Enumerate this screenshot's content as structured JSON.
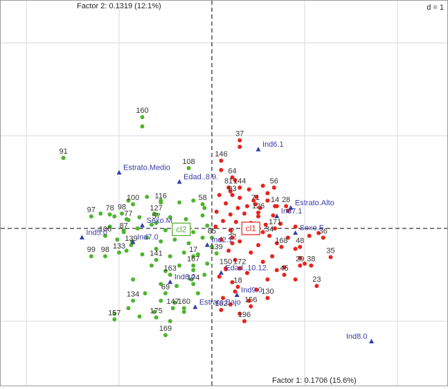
{
  "chart_data": {
    "type": "scatter",
    "xlabel": "Factor 1: 0.1706 (15.6%)",
    "ylabel": "Factor 2: 0.1319 (12.1%)",
    "scale_label": "d = 1",
    "xlim": [
      -2.3,
      2.5
    ],
    "ylim": [
      -1.75,
      2.45
    ],
    "grid": true,
    "colors": {
      "cl1": "#e8231d",
      "cl2": "#4fb52f",
      "variables": "#2e3ea8",
      "cl1_box": "#e0302a",
      "cl2_box": "#5cae3a"
    },
    "clusters": [
      {
        "name": "cl1",
        "x": 0.42,
        "y": 0.0
      },
      {
        "name": "cl2",
        "x": -0.33,
        "y": -0.01
      }
    ],
    "variables": [
      {
        "label": "Ind6.1",
        "x": 0.5,
        "y": 0.85
      },
      {
        "label": "Estrato.Medio",
        "x": -1.0,
        "y": 0.6
      },
      {
        "label": "Edad..8.9.",
        "x": -0.35,
        "y": 0.5
      },
      {
        "label": "Estrato.Alto",
        "x": 0.85,
        "y": 0.22
      },
      {
        "label": "Ind7.1",
        "x": 0.7,
        "y": 0.13
      },
      {
        "label": "Sexo.F",
        "x": 0.9,
        "y": -0.05
      },
      {
        "label": "Sexo.M",
        "x": -0.75,
        "y": 0.03
      },
      {
        "label": "Ind5.0",
        "x": -1.4,
        "y": -0.1
      },
      {
        "label": "Ind7.0",
        "x": -0.85,
        "y": -0.15
      },
      {
        "label": "Ind2.1",
        "x": -0.05,
        "y": -0.18
      },
      {
        "label": "Edad..10.12.",
        "x": 0.1,
        "y": -0.48
      },
      {
        "label": "Ind6.0",
        "x": -0.45,
        "y": -0.58
      },
      {
        "label": "Ind9.0",
        "x": 0.27,
        "y": -0.72
      },
      {
        "label": "Estrato.Bajo",
        "x": -0.18,
        "y": -0.85
      },
      {
        "label": "Ind8.0",
        "x": 1.72,
        "y": -1.22
      }
    ],
    "point_labels": [
      {
        "label": "37",
        "x": 0.3,
        "y": 0.95,
        "group": "cl1"
      },
      {
        "label": "146",
        "x": 0.1,
        "y": 0.73,
        "group": "cl1"
      },
      {
        "label": "64",
        "x": 0.22,
        "y": 0.55,
        "group": "cl1"
      },
      {
        "label": "81",
        "x": 0.18,
        "y": 0.44,
        "group": "cl1"
      },
      {
        "label": "144",
        "x": 0.3,
        "y": 0.44,
        "group": "cl1"
      },
      {
        "label": "56",
        "x": 0.67,
        "y": 0.44,
        "group": "cl1"
      },
      {
        "label": "93",
        "x": 0.22,
        "y": 0.36,
        "group": "cl1"
      },
      {
        "label": "71",
        "x": 0.47,
        "y": 0.26,
        "group": "cl1"
      },
      {
        "label": "14",
        "x": 0.68,
        "y": 0.24,
        "group": "cl1"
      },
      {
        "label": "28",
        "x": 0.8,
        "y": 0.24,
        "group": "cl1"
      },
      {
        "label": "126",
        "x": 0.5,
        "y": 0.17,
        "group": "cl1"
      },
      {
        "label": "171",
        "x": 0.68,
        "y": 0.0,
        "group": "cl1"
      },
      {
        "label": "34",
        "x": 0.62,
        "y": -0.08,
        "group": "cl1"
      },
      {
        "label": "36",
        "x": 1.2,
        "y": -0.1,
        "group": "cl1"
      },
      {
        "label": "48",
        "x": 0.95,
        "y": -0.2,
        "group": "cl1"
      },
      {
        "label": "168",
        "x": 0.75,
        "y": -0.2,
        "group": "cl1"
      },
      {
        "label": "35",
        "x": 1.28,
        "y": -0.31,
        "group": "cl1"
      },
      {
        "label": "22",
        "x": 0.22,
        "y": -0.16,
        "group": "cl1"
      },
      {
        "label": "2",
        "x": 0.22,
        "y": -0.1,
        "group": "cl1"
      },
      {
        "label": "29",
        "x": 0.95,
        "y": -0.4,
        "group": "cl1"
      },
      {
        "label": "38",
        "x": 1.07,
        "y": -0.4,
        "group": "cl1"
      },
      {
        "label": "45",
        "x": 0.78,
        "y": -0.5,
        "group": "cl1"
      },
      {
        "label": "23",
        "x": 1.13,
        "y": -0.62,
        "group": "cl1"
      },
      {
        "label": "130",
        "x": 0.6,
        "y": -0.75,
        "group": "cl1"
      },
      {
        "label": "18",
        "x": 0.28,
        "y": -0.63,
        "group": "cl1"
      },
      {
        "label": "156",
        "x": 0.42,
        "y": -0.84,
        "group": "cl1"
      },
      {
        "label": "196",
        "x": 0.35,
        "y": -1.0,
        "group": "cl1"
      },
      {
        "label": "162",
        "x": 0.1,
        "y": -0.88,
        "group": "cl1"
      },
      {
        "label": "150",
        "x": 0.15,
        "y": -0.43,
        "group": "cl1"
      },
      {
        "label": "172",
        "x": 0.3,
        "y": -0.43,
        "group": "cl1"
      },
      {
        "label": "91",
        "x": -1.6,
        "y": 0.76,
        "group": "cl2"
      },
      {
        "label": "160",
        "x": -0.75,
        "y": 1.2,
        "group": "cl2"
      },
      {
        "label": "108",
        "x": -0.25,
        "y": 0.65,
        "group": "cl2"
      },
      {
        "label": "100",
        "x": -0.85,
        "y": 0.26,
        "group": "cl2"
      },
      {
        "label": "116",
        "x": -0.55,
        "y": 0.28,
        "group": "cl2"
      },
      {
        "label": "58",
        "x": -0.1,
        "y": 0.26,
        "group": "cl2"
      },
      {
        "label": "97",
        "x": -1.3,
        "y": 0.13,
        "group": "cl2"
      },
      {
        "label": "78",
        "x": -1.1,
        "y": 0.15,
        "group": "cl2"
      },
      {
        "label": "98",
        "x": -0.97,
        "y": 0.16,
        "group": "cl2"
      },
      {
        "label": "77",
        "x": -0.9,
        "y": 0.09,
        "group": "cl2"
      },
      {
        "label": "127",
        "x": -0.6,
        "y": 0.15,
        "group": "cl2"
      },
      {
        "label": "106",
        "x": -1.15,
        "y": -0.08,
        "group": "cl2"
      },
      {
        "label": "87",
        "x": -0.95,
        "y": -0.04,
        "group": "cl2"
      },
      {
        "label": "57",
        "x": -0.6,
        "y": 0.06,
        "group": "cl2"
      },
      {
        "label": "133",
        "x": -1.0,
        "y": -0.26,
        "group": "cl2"
      },
      {
        "label": "139",
        "x": -0.87,
        "y": -0.18,
        "group": "cl2"
      },
      {
        "label": "99",
        "x": -1.3,
        "y": -0.3,
        "group": "cl2"
      },
      {
        "label": "98",
        "x": -1.15,
        "y": -0.3,
        "group": "cl2"
      },
      {
        "label": "141",
        "x": -0.6,
        "y": -0.34,
        "group": "cl2"
      },
      {
        "label": "65",
        "x": 0.0,
        "y": -0.1,
        "group": "cl2"
      },
      {
        "label": "17",
        "x": -0.2,
        "y": -0.3,
        "group": "cl2"
      },
      {
        "label": "139",
        "x": 0.05,
        "y": -0.27,
        "group": "cl2"
      },
      {
        "label": "163",
        "x": -0.45,
        "y": -0.5,
        "group": "cl2"
      },
      {
        "label": "167",
        "x": -0.2,
        "y": -0.4,
        "group": "cl2"
      },
      {
        "label": "174",
        "x": -0.2,
        "y": -0.6,
        "group": "cl2"
      },
      {
        "label": "69",
        "x": -0.5,
        "y": -0.7,
        "group": "cl2"
      },
      {
        "label": "134",
        "x": -0.85,
        "y": -0.78,
        "group": "cl2"
      },
      {
        "label": "147",
        "x": -0.42,
        "y": -0.86,
        "group": "cl2"
      },
      {
        "label": "160",
        "x": -0.3,
        "y": -0.86,
        "group": "cl2"
      },
      {
        "label": "157",
        "x": -1.05,
        "y": -0.98,
        "group": "cl2"
      },
      {
        "label": "175",
        "x": -0.6,
        "y": -0.96,
        "group": "cl2"
      },
      {
        "label": "169",
        "x": -0.5,
        "y": -1.15,
        "group": "cl2"
      }
    ],
    "cl1_points": [
      [
        0.3,
        0.88
      ],
      [
        0.1,
        0.63
      ],
      [
        0.25,
        0.52
      ],
      [
        0.55,
        0.46
      ],
      [
        0.2,
        0.4
      ],
      [
        0.4,
        0.42
      ],
      [
        0.08,
        0.36
      ],
      [
        0.3,
        0.33
      ],
      [
        0.48,
        0.34
      ],
      [
        0.6,
        0.3
      ],
      [
        0.15,
        0.27
      ],
      [
        0.28,
        0.22
      ],
      [
        0.38,
        0.24
      ],
      [
        0.52,
        0.22
      ],
      [
        0.7,
        0.24
      ],
      [
        0.82,
        0.19
      ],
      [
        0.05,
        0.18
      ],
      [
        0.2,
        0.15
      ],
      [
        0.35,
        0.16
      ],
      [
        0.5,
        0.13
      ],
      [
        0.66,
        0.14
      ],
      [
        0.12,
        0.08
      ],
      [
        0.26,
        0.07
      ],
      [
        0.42,
        0.06
      ],
      [
        0.58,
        0.04
      ],
      [
        0.74,
        0.05
      ],
      [
        0.9,
        0.02
      ],
      [
        0.04,
        0.02
      ],
      [
        0.2,
        -0.02
      ],
      [
        0.36,
        -0.05
      ],
      [
        0.55,
        -0.04
      ],
      [
        0.82,
        -0.1
      ],
      [
        1.05,
        -0.08
      ],
      [
        1.15,
        -0.05
      ],
      [
        0.1,
        -0.12
      ],
      [
        0.3,
        -0.14
      ],
      [
        0.5,
        -0.18
      ],
      [
        0.7,
        -0.16
      ],
      [
        0.9,
        -0.22
      ],
      [
        0.18,
        -0.24
      ],
      [
        0.42,
        -0.26
      ],
      [
        0.65,
        -0.3
      ],
      [
        0.25,
        -0.34
      ],
      [
        0.55,
        -0.36
      ],
      [
        0.78,
        -0.42
      ],
      [
        1.0,
        -0.38
      ],
      [
        0.15,
        -0.44
      ],
      [
        0.38,
        -0.48
      ],
      [
        0.6,
        -0.55
      ],
      [
        0.9,
        -0.55
      ],
      [
        0.22,
        -0.58
      ],
      [
        0.08,
        -0.52
      ],
      [
        0.48,
        -0.66
      ],
      [
        0.25,
        -0.68
      ],
      [
        0.4,
        -0.78
      ],
      [
        0.2,
        -0.82
      ],
      [
        0.3,
        -0.92
      ],
      [
        0.12,
        -0.75
      ],
      [
        0.7,
        -0.45
      ],
      [
        0.95,
        -0.32
      ],
      [
        0.6,
        0.38
      ],
      [
        0.45,
        0.3
      ]
    ],
    "cl2_points": [
      [
        -1.6,
        0.76
      ],
      [
        -0.75,
        1.1
      ],
      [
        -0.9,
        0.3
      ],
      [
        -0.7,
        0.34
      ],
      [
        -0.55,
        0.3
      ],
      [
        -0.35,
        0.28
      ],
      [
        -0.2,
        0.3
      ],
      [
        -0.08,
        0.22
      ],
      [
        -1.2,
        0.16
      ],
      [
        -1.05,
        0.13
      ],
      [
        -0.92,
        0.1
      ],
      [
        -0.78,
        0.12
      ],
      [
        -0.62,
        0.16
      ],
      [
        -0.45,
        0.12
      ],
      [
        -0.28,
        0.1
      ],
      [
        -0.1,
        0.14
      ],
      [
        -1.1,
        0.02
      ],
      [
        -0.95,
        -0.02
      ],
      [
        -0.8,
        0.0
      ],
      [
        -0.65,
        0.04
      ],
      [
        -0.5,
        -0.02
      ],
      [
        -0.35,
        0.02
      ],
      [
        -0.2,
        -0.04
      ],
      [
        -0.05,
        0.03
      ],
      [
        -1.02,
        -0.12
      ],
      [
        -0.86,
        -0.14
      ],
      [
        -0.7,
        -0.1
      ],
      [
        -0.55,
        -0.14
      ],
      [
        -0.4,
        -0.12
      ],
      [
        -0.25,
        -0.16
      ],
      [
        -0.1,
        -0.1
      ],
      [
        -0.92,
        -0.24
      ],
      [
        -0.75,
        -0.28
      ],
      [
        -0.6,
        -0.22
      ],
      [
        -0.45,
        -0.3
      ],
      [
        -0.3,
        -0.26
      ],
      [
        -0.15,
        -0.28
      ],
      [
        0.0,
        -0.2
      ],
      [
        -0.65,
        -0.4
      ],
      [
        -0.5,
        -0.46
      ],
      [
        -0.35,
        -0.4
      ],
      [
        -0.2,
        -0.45
      ],
      [
        -0.05,
        -0.38
      ],
      [
        -0.55,
        -0.6
      ],
      [
        -0.38,
        -0.62
      ],
      [
        -0.22,
        -0.55
      ],
      [
        -0.08,
        -0.5
      ],
      [
        -0.72,
        -0.7
      ],
      [
        -0.55,
        -0.78
      ],
      [
        -0.4,
        -0.8
      ],
      [
        -0.9,
        -0.86
      ],
      [
        -0.62,
        -0.9
      ],
      [
        -0.45,
        -1.0
      ],
      [
        -1.05,
        -0.92
      ],
      [
        -0.78,
        -0.95
      ],
      [
        -0.3,
        -0.9
      ],
      [
        -0.15,
        -0.7
      ],
      [
        -0.85,
        -0.55
      ]
    ]
  }
}
